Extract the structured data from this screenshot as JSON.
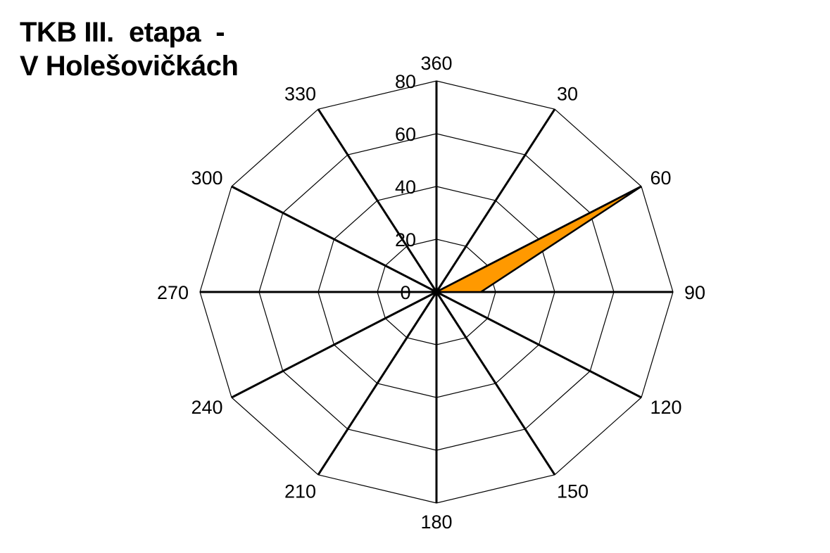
{
  "title": {
    "line1": "TKB III.  etapa  -",
    "line2": "V Holešovičkách"
  },
  "chart_data": {
    "type": "radar",
    "title": "TKB III.  etapa  - V Holešovičkách",
    "directions": [
      360,
      30,
      60,
      90,
      120,
      150,
      180,
      210,
      240,
      270,
      300,
      330
    ],
    "direction_labels": [
      "360",
      "30",
      "60",
      "90",
      "120",
      "150",
      "180",
      "210",
      "240",
      "270",
      "300",
      "330"
    ],
    "radial_ticks": [
      0,
      20,
      40,
      60,
      80
    ],
    "radial_tick_labels": [
      "0",
      "20",
      "40",
      "60",
      "80"
    ],
    "rlim": [
      0,
      80
    ],
    "grid": true,
    "series": [
      {
        "values": [
          0,
          0,
          80,
          15,
          0,
          0,
          0,
          0,
          0,
          0,
          0,
          0
        ],
        "fill_color": "#ff9900",
        "stroke_color": "#000000"
      }
    ]
  }
}
